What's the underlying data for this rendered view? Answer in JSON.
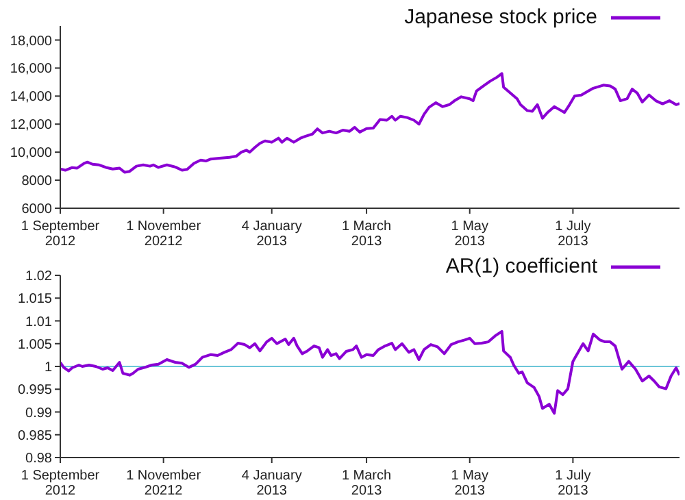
{
  "chart_data": [
    {
      "type": "line",
      "legend": "top right",
      "grid": false,
      "xlim": [
        "2012-09-01",
        "2013-09-02"
      ],
      "xticks": [
        {
          "value": "2012-09-01",
          "label": "1 September 2012"
        },
        {
          "value": "2012-11-01",
          "label": "1 November 20212"
        },
        {
          "value": "2013-01-04",
          "label": "4 January 2013"
        },
        {
          "value": "2013-03-01",
          "label": "1 March 2013"
        },
        {
          "value": "2013-05-01",
          "label": "1 May 2013"
        },
        {
          "value": "2013-07-01",
          "label": "1 July 2013"
        }
      ],
      "ylim": [
        6000,
        19000
      ],
      "yticks": [
        6000,
        8000,
        {
          "value": 10000,
          "label": "10,000"
        },
        {
          "value": 12000,
          "label": "12,000"
        },
        {
          "value": 14000,
          "label": "14,000"
        },
        {
          "value": 16000,
          "label": "16,000"
        },
        {
          "value": 18000,
          "label": "18,000"
        }
      ],
      "series": [
        {
          "name": "Japanese stock price",
          "color": "#8a00d4",
          "x": [
            "2012-09-01",
            "2012-09-04",
            "2012-09-08",
            "2012-09-11",
            "2012-09-15",
            "2012-09-17",
            "2012-09-20",
            "2012-09-24",
            "2012-09-28",
            "2012-10-02",
            "2012-10-06",
            "2012-10-09",
            "2012-10-12",
            "2012-10-16",
            "2012-10-20",
            "2012-10-24",
            "2012-10-26",
            "2012-10-29",
            "2012-11-03",
            "2012-11-08",
            "2012-11-12",
            "2012-11-15",
            "2012-11-19",
            "2012-11-23",
            "2012-11-26",
            "2012-11-29",
            "2012-12-04",
            "2012-12-10",
            "2012-12-14",
            "2012-12-17",
            "2012-12-20",
            "2012-12-22",
            "2012-12-25",
            "2012-12-28",
            "2012-12-31",
            "2013-01-04",
            "2013-01-08",
            "2013-01-10",
            "2013-01-13",
            "2013-01-17",
            "2013-01-21",
            "2013-01-24",
            "2013-01-28",
            "2013-01-31",
            "2013-02-03",
            "2013-02-07",
            "2013-02-11",
            "2013-02-15",
            "2013-02-19",
            "2013-02-22",
            "2013-02-25",
            "2013-03-01",
            "2013-03-05",
            "2013-03-09",
            "2013-03-13",
            "2013-03-16",
            "2013-03-18",
            "2013-03-21",
            "2013-03-25",
            "2013-03-29",
            "2013-04-01",
            "2013-04-04",
            "2013-04-07",
            "2013-04-11",
            "2013-04-15",
            "2013-04-19",
            "2013-04-22",
            "2013-04-26",
            "2013-05-01",
            "2013-05-03",
            "2013-05-05",
            "2013-05-09",
            "2013-05-13",
            "2013-05-17",
            "2013-05-20",
            "2013-05-21",
            "2013-05-25",
            "2013-05-29",
            "2013-05-31",
            "2013-06-04",
            "2013-06-07",
            "2013-06-10",
            "2013-06-13",
            "2013-06-16",
            "2013-06-20",
            "2013-06-24",
            "2013-06-26",
            "2013-06-29",
            "2013-07-02",
            "2013-07-06",
            "2013-07-10",
            "2013-07-13",
            "2013-07-19",
            "2013-07-23",
            "2013-07-26",
            "2013-07-29",
            "2013-08-02",
            "2013-08-05",
            "2013-08-08",
            "2013-08-11",
            "2013-08-15",
            "2013-08-19",
            "2013-08-23",
            "2013-08-27",
            "2013-08-31",
            "2013-09-02"
          ],
          "values": [
            8800,
            8710,
            8900,
            8860,
            9200,
            9290,
            9140,
            9090,
            8910,
            8800,
            8860,
            8570,
            8630,
            9000,
            9090,
            9000,
            9090,
            8910,
            9090,
            8940,
            8710,
            8770,
            9200,
            9430,
            9370,
            9510,
            9570,
            9630,
            9710,
            10000,
            10140,
            10000,
            10340,
            10630,
            10800,
            10710,
            11000,
            10710,
            11000,
            10710,
            11000,
            11140,
            11290,
            11660,
            11370,
            11490,
            11370,
            11570,
            11490,
            11770,
            11430,
            11680,
            11720,
            12330,
            12280,
            12560,
            12280,
            12560,
            12470,
            12280,
            12000,
            12700,
            13200,
            13530,
            13250,
            13390,
            13670,
            13950,
            13810,
            13670,
            14360,
            14720,
            15060,
            15340,
            15610,
            14640,
            14220,
            13810,
            13390,
            12970,
            12920,
            13390,
            12420,
            12830,
            13250,
            12970,
            12830,
            13390,
            14000,
            14080,
            14360,
            14560,
            14780,
            14720,
            14500,
            13670,
            13810,
            14500,
            14220,
            13580,
            14080,
            13670,
            13450,
            13670,
            13390,
            13470
          ]
        }
      ]
    },
    {
      "type": "line",
      "legend": "top right",
      "grid": false,
      "xlim": [
        "2012-09-01",
        "2013-09-02"
      ],
      "xticks": [
        {
          "value": "2012-09-01",
          "label": "1 September 2012"
        },
        {
          "value": "2012-11-01",
          "label": "1 November 20212"
        },
        {
          "value": "2013-01-04",
          "label": "4 January 2013"
        },
        {
          "value": "2013-03-01",
          "label": "1 March 2013"
        },
        {
          "value": "2013-05-01",
          "label": "1 May 2013"
        },
        {
          "value": "2013-07-01",
          "label": "1 July 2013"
        }
      ],
      "ylim": [
        0.98,
        1.02
      ],
      "yticks": [
        0.98,
        0.985,
        0.99,
        0.995,
        1,
        1.005,
        1.01,
        1.015,
        1.02
      ],
      "ref_lines": [
        {
          "axis": "y",
          "value": 1,
          "color": "#6cc6d8"
        }
      ],
      "series": [
        {
          "name": "AR(1) coefficient",
          "color": "#8a00d4",
          "x": [
            "2012-09-01",
            "2012-09-03",
            "2012-09-06",
            "2012-09-08",
            "2012-09-12",
            "2012-09-14",
            "2012-09-18",
            "2012-09-22",
            "2012-09-26",
            "2012-09-29",
            "2012-10-02",
            "2012-10-04",
            "2012-10-06",
            "2012-10-08",
            "2012-10-12",
            "2012-10-14",
            "2012-10-17",
            "2012-10-21",
            "2012-10-25",
            "2012-10-29",
            "2012-11-01",
            "2012-11-03",
            "2012-11-08",
            "2012-11-12",
            "2012-11-16",
            "2012-11-20",
            "2012-11-24",
            "2012-11-29",
            "2012-12-03",
            "2012-12-07",
            "2012-12-11",
            "2012-12-15",
            "2012-12-19",
            "2012-12-22",
            "2012-12-25",
            "2012-12-28",
            "2013-01-01",
            "2013-01-04",
            "2013-01-07",
            "2013-01-12",
            "2013-01-14",
            "2013-01-17",
            "2013-01-19",
            "2013-01-22",
            "2013-01-25",
            "2013-01-29",
            "2013-02-01",
            "2013-02-03",
            "2013-02-06",
            "2013-02-08",
            "2013-02-11",
            "2013-02-13",
            "2013-02-17",
            "2013-02-21",
            "2013-02-23",
            "2013-02-26",
            "2013-03-01",
            "2013-03-05",
            "2013-03-08",
            "2013-03-12",
            "2013-03-16",
            "2013-03-18",
            "2013-03-22",
            "2013-03-26",
            "2013-03-29",
            "2013-04-01",
            "2013-04-04",
            "2013-04-08",
            "2013-04-12",
            "2013-04-16",
            "2013-04-20",
            "2013-04-24",
            "2013-04-28",
            "2013-05-01",
            "2013-05-04",
            "2013-05-08",
            "2013-05-12",
            "2013-05-16",
            "2013-05-20",
            "2013-05-21",
            "2013-05-25",
            "2013-05-27",
            "2013-05-30",
            "2013-06-01",
            "2013-06-04",
            "2013-06-08",
            "2013-06-11",
            "2013-06-13",
            "2013-06-17",
            "2013-06-20",
            "2013-06-22",
            "2013-06-25",
            "2013-06-28",
            "2013-07-01",
            "2013-07-03",
            "2013-07-07",
            "2013-07-10",
            "2013-07-13",
            "2013-07-17",
            "2013-07-20",
            "2013-07-23",
            "2013-07-26",
            "2013-07-30",
            "2013-08-03",
            "2013-08-07",
            "2013-08-11",
            "2013-08-15",
            "2013-08-18",
            "2013-08-21",
            "2013-08-25",
            "2013-08-28",
            "2013-08-31",
            "2013-09-02"
          ],
          "values": [
            1.0009,
            0.9998,
            0.999,
            0.9997,
            1.0003,
            1.0,
            1.0003,
            1.0,
            0.9994,
            0.9997,
            0.9991,
            1.0,
            1.0009,
            0.9985,
            0.9981,
            0.9985,
            0.9994,
            0.9998,
            1.0003,
            1.0005,
            1.0011,
            1.0015,
            1.0009,
            1.0007,
            0.9998,
            1.0005,
            1.002,
            1.0026,
            1.0024,
            1.0031,
            1.0037,
            1.0051,
            1.0048,
            1.0041,
            1.005,
            1.0034,
            1.0054,
            1.0062,
            1.005,
            1.006,
            1.0048,
            1.0062,
            1.0045,
            1.0028,
            1.0034,
            1.0045,
            1.0041,
            1.002,
            1.0037,
            1.0024,
            1.0028,
            1.0017,
            1.0033,
            1.0037,
            1.0045,
            1.002,
            1.0026,
            1.0024,
            1.0037,
            1.0045,
            1.0051,
            1.0037,
            1.005,
            1.0031,
            1.0037,
            1.0015,
            1.0037,
            1.0048,
            1.0043,
            1.0028,
            1.0048,
            1.0054,
            1.0058,
            1.0062,
            1.005,
            1.0051,
            1.0054,
            1.0067,
            1.0077,
            1.0034,
            1.002,
            1.0003,
            0.9985,
            0.9988,
            0.9964,
            0.9954,
            0.9934,
            0.9908,
            0.9917,
            0.9897,
            0.9947,
            0.9938,
            0.9951,
            1.0011,
            1.0024,
            1.005,
            1.0034,
            1.0071,
            1.0058,
            1.0054,
            1.0054,
            1.0045,
            0.9994,
            1.0011,
            0.9994,
            0.9968,
            0.9979,
            0.9968,
            0.9955,
            0.9951,
            0.9979,
            0.9997,
            0.9981
          ]
        }
      ]
    }
  ]
}
